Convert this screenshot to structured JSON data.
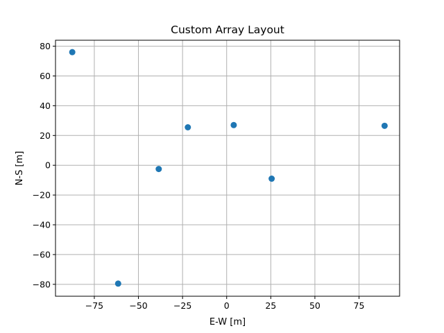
{
  "chart_data": {
    "type": "scatter",
    "title": "Custom Array Layout",
    "xlabel": "E-W [m]",
    "ylabel": "N-S [m]",
    "xlim": [
      -97,
      98
    ],
    "ylim": [
      -88,
      84
    ],
    "xticks": [
      -75,
      -50,
      -25,
      0,
      25,
      50,
      75
    ],
    "xtick_labels": [
      "−75",
      "−50",
      "−25",
      "0",
      "25",
      "50",
      "75"
    ],
    "yticks": [
      -80,
      -60,
      -40,
      -20,
      0,
      20,
      40,
      60,
      80
    ],
    "ytick_labels": [
      "−80",
      "−60",
      "−40",
      "−20",
      "0",
      "20",
      "40",
      "60",
      "80"
    ],
    "grid": true,
    "series": [
      {
        "color": "#1f77b4",
        "points": [
          {
            "x": -87.5,
            "y": 76
          },
          {
            "x": -61.5,
            "y": -79.5
          },
          {
            "x": -38.5,
            "y": -2.5
          },
          {
            "x": -22,
            "y": 25.5
          },
          {
            "x": 4,
            "y": 27
          },
          {
            "x": 25.5,
            "y": -9
          },
          {
            "x": 89.5,
            "y": 26.5
          }
        ]
      }
    ]
  }
}
